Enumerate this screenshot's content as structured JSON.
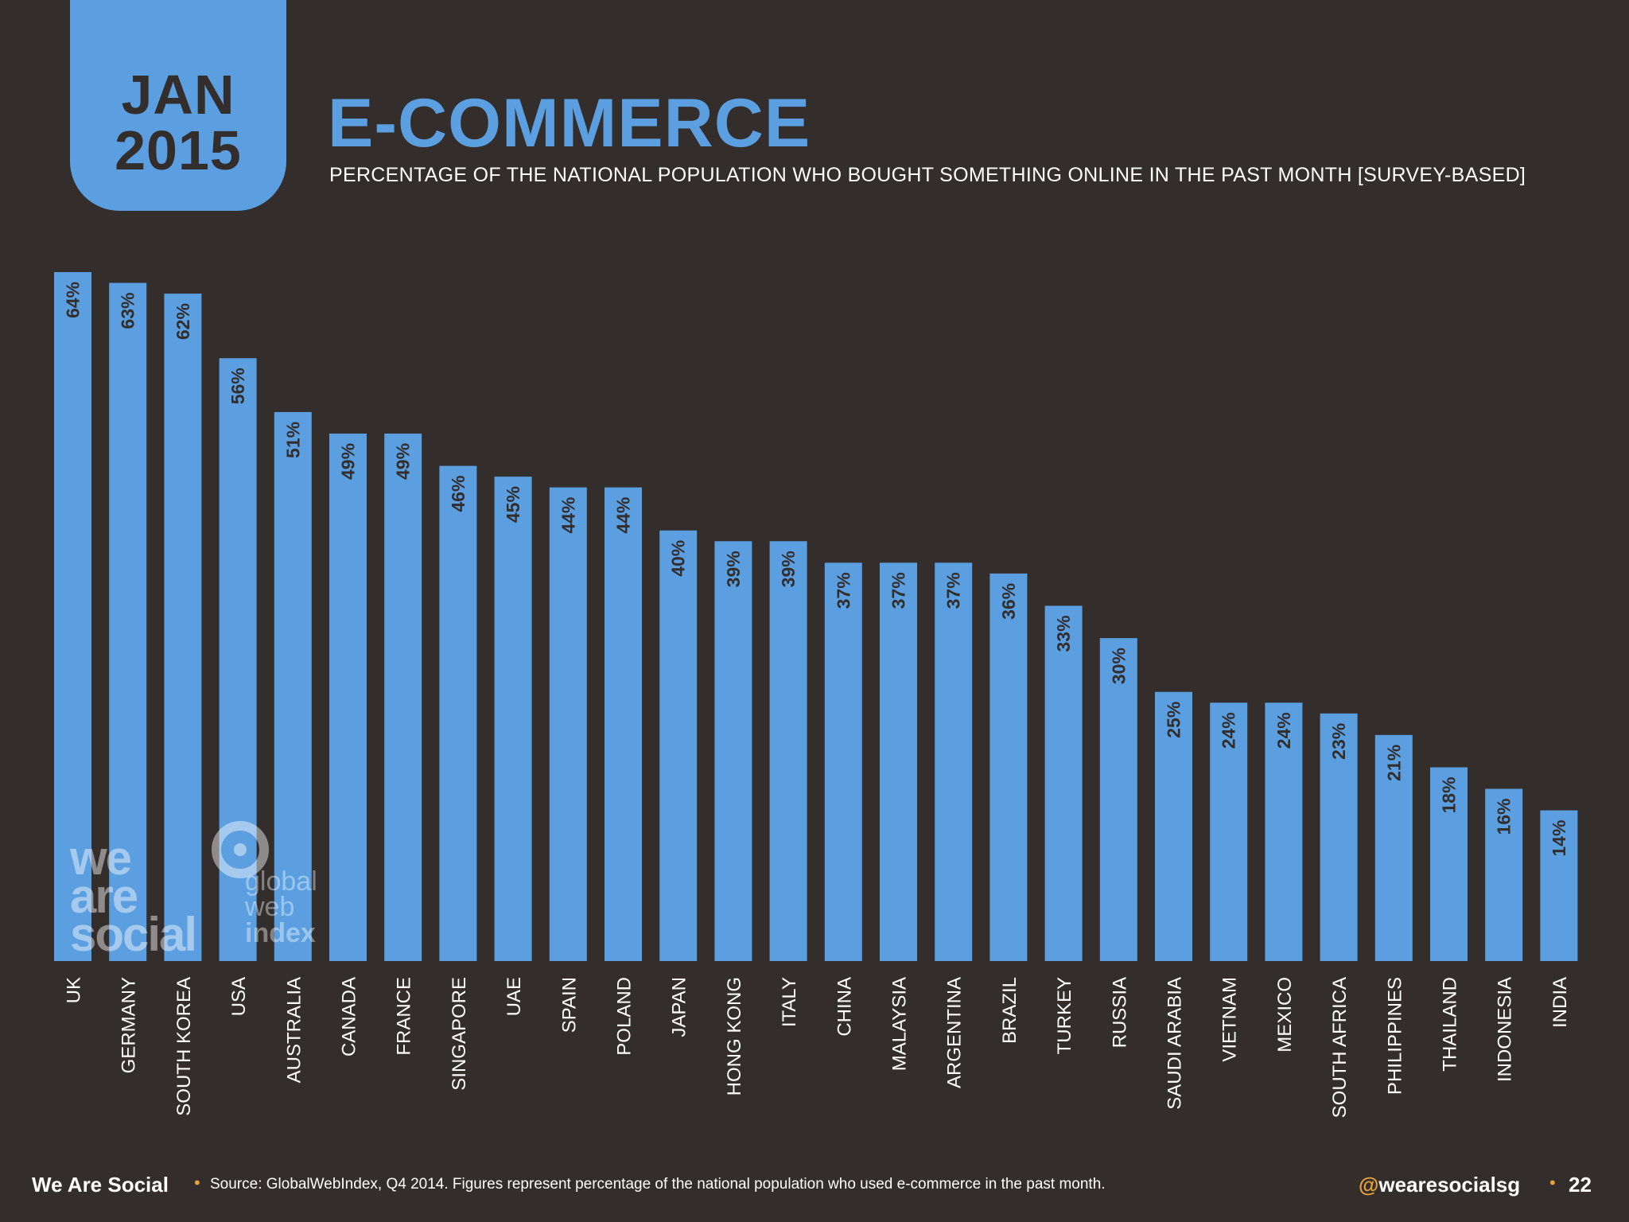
{
  "header": {
    "date_month": "JAN",
    "date_year": "2015",
    "title": "E-COMMERCE",
    "subtitle": "PERCENTAGE OF THE NATIONAL POPULATION WHO BOUGHT SOMETHING ONLINE IN THE PAST MONTH [SURVEY-BASED]"
  },
  "watermarks": {
    "we_are_social": [
      "we",
      "are",
      "social"
    ],
    "global_web_index": [
      "global",
      "web",
      "index"
    ]
  },
  "footer": {
    "brand": "We Are Social",
    "source": "Source: GlobalWebIndex, Q4 2014. Figures represent percentage of the national population who used e-commerce in the past month.",
    "handle_at": "@",
    "handle": "wearesocialsg",
    "page": "22",
    "separator": "•"
  },
  "colors": {
    "background": "#332d2c",
    "accent": "#5b9fe0",
    "label_dark": "#332d2c",
    "highlight": "#e8a13a"
  },
  "chart_data": {
    "type": "bar",
    "orientation": "vertical",
    "categories": [
      "UK",
      "GERMANY",
      "SOUTH KOREA",
      "USA",
      "AUSTRALIA",
      "CANADA",
      "FRANCE",
      "SINGAPORE",
      "UAE",
      "SPAIN",
      "POLAND",
      "JAPAN",
      "HONG KONG",
      "ITALY",
      "CHINA",
      "MALAYSIA",
      "ARGENTINA",
      "BRAZIL",
      "TURKEY",
      "RUSSIA",
      "SAUDI ARABIA",
      "VIETNAM",
      "MEXICO",
      "SOUTH AFRICA",
      "PHILIPPINES",
      "THAILAND",
      "INDONESIA",
      "INDIA"
    ],
    "values": [
      64,
      63,
      62,
      56,
      51,
      49,
      49,
      46,
      45,
      44,
      44,
      40,
      39,
      39,
      37,
      37,
      37,
      36,
      33,
      30,
      25,
      24,
      24,
      23,
      21,
      18,
      16,
      14
    ],
    "data_labels": [
      "64%",
      "63%",
      "62%",
      "56%",
      "51%",
      "49%",
      "49%",
      "46%",
      "45%",
      "44%",
      "44%",
      "40%",
      "39%",
      "39%",
      "37%",
      "37%",
      "37%",
      "36%",
      "33%",
      "30%",
      "25%",
      "24%",
      "24%",
      "23%",
      "21%",
      "18%",
      "16%",
      "14%"
    ],
    "title": "E-COMMERCE",
    "xlabel": "",
    "ylabel": "",
    "ylim": [
      0,
      64
    ],
    "grid": false,
    "legend": "none",
    "label_orientation": "rotated"
  }
}
